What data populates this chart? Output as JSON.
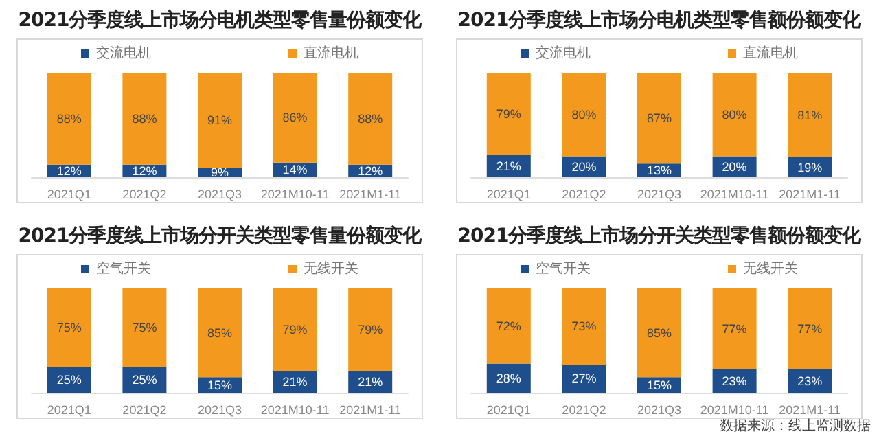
{
  "chart_data": [
    {
      "type": "bar",
      "stacked": true,
      "legend": "top",
      "title": "2021分季度线上市场分电机类型零售量份额变化",
      "categories": [
        "2021Q1",
        "2021Q2",
        "2021Q3",
        "2021M10-11",
        "2021M1-11"
      ],
      "series": [
        {
          "name": "交流电机",
          "color": "#1f4e8c",
          "values": [
            12,
            12,
            9,
            14,
            12
          ],
          "value_labels": [
            "12%",
            "12%",
            "9%",
            "14%",
            "12%"
          ]
        },
        {
          "name": "直流电机",
          "color": "#f39a1e",
          "values": [
            88,
            88,
            91,
            86,
            88
          ],
          "value_labels": [
            "88%",
            "88%",
            "91%",
            "86%",
            "88%"
          ]
        }
      ]
    },
    {
      "type": "bar",
      "stacked": true,
      "legend": "top",
      "title": "2021分季度线上市场分电机类型零售额份额变化",
      "categories": [
        "2021Q1",
        "2021Q2",
        "2021Q3",
        "2021M10-11",
        "2021M1-11"
      ],
      "series": [
        {
          "name": "交流电机",
          "color": "#1f4e8c",
          "values": [
            21,
            20,
            13,
            20,
            19
          ],
          "value_labels": [
            "21%",
            "20%",
            "13%",
            "20%",
            "19%"
          ]
        },
        {
          "name": "直流电机",
          "color": "#f39a1e",
          "values": [
            79,
            80,
            87,
            80,
            81
          ],
          "value_labels": [
            "79%",
            "80%",
            "87%",
            "80%",
            "81%"
          ]
        }
      ]
    },
    {
      "type": "bar",
      "stacked": true,
      "legend": "top",
      "title": "2021分季度线上市场分开关类型零售量份额变化",
      "categories": [
        "2021Q1",
        "2021Q2",
        "2021Q3",
        "2021M10-11",
        "2021M1-11"
      ],
      "series": [
        {
          "name": "空气开关",
          "color": "#1f4e8c",
          "values": [
            25,
            25,
            15,
            21,
            21
          ],
          "value_labels": [
            "25%",
            "25%",
            "15%",
            "21%",
            "21%"
          ]
        },
        {
          "name": "无线开关",
          "color": "#f39a1e",
          "values": [
            75,
            75,
            85,
            79,
            79
          ],
          "value_labels": [
            "75%",
            "75%",
            "85%",
            "79%",
            "79%"
          ]
        }
      ]
    },
    {
      "type": "bar",
      "stacked": true,
      "legend": "top",
      "title": "2021分季度线上市场分开关类型零售额份额变化",
      "categories": [
        "2021Q1",
        "2021Q2",
        "2021Q3",
        "2021M10-11",
        "2021M1-11"
      ],
      "annotations": [
        "数据来源：线上监测数据"
      ],
      "series": [
        {
          "name": "空气开关",
          "color": "#1f4e8c",
          "values": [
            28,
            27,
            15,
            23,
            23
          ],
          "value_labels": [
            "28%",
            "27%",
            "15%",
            "23%",
            "23%"
          ]
        },
        {
          "name": "无线开关",
          "color": "#f39a1e",
          "values": [
            72,
            73,
            85,
            77,
            77
          ],
          "value_labels": [
            "72%",
            "73%",
            "85%",
            "77%",
            "77%"
          ]
        }
      ]
    }
  ]
}
